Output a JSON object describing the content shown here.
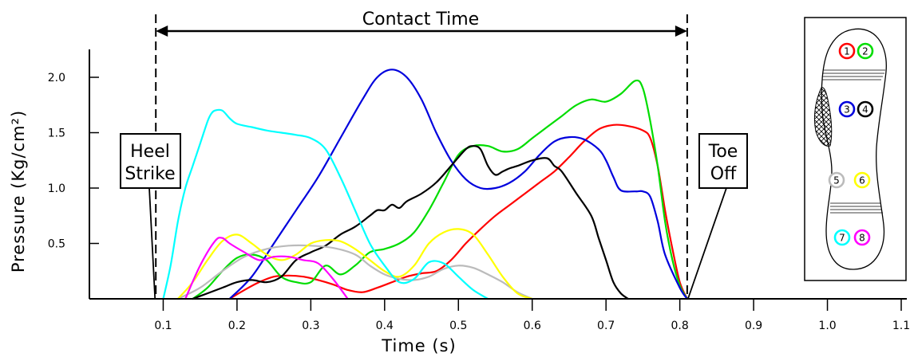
{
  "chart_data": {
    "type": "line",
    "xlabel": "Time  (s)",
    "ylabel": "Pressure  (Kg/cm²)",
    "xlim": [
      0,
      1.1
    ],
    "ylim": [
      0,
      2.2
    ],
    "x_ticks": [
      0.1,
      0.2,
      0.3,
      0.4,
      0.5,
      0.6,
      0.7,
      0.8,
      0.9,
      1.0,
      1.1
    ],
    "x_tick_labels": [
      "0.1",
      "0.2",
      "0.3",
      "0.4",
      "0.5",
      "0.6",
      "0.7",
      "0.8",
      "0.9",
      "1.0",
      "1.1"
    ],
    "y_ticks": [
      0.5,
      1.0,
      1.5,
      2.0
    ],
    "y_tick_labels": [
      "0.5",
      "1.0",
      "1.5",
      "2.0"
    ],
    "grid": false,
    "legend": "none",
    "annotations": {
      "contact_time": {
        "label": "Contact Time",
        "start": 0.09,
        "end": 0.81
      },
      "heel_strike": {
        "label_line1": "Heel",
        "label_line2": "Strike",
        "x": 0.09
      },
      "toe_off": {
        "label_line1": "Toe",
        "label_line2": "Off",
        "x": 0.81
      }
    },
    "series": [
      {
        "sensor": "1",
        "color": "#ff0000",
        "x": [
          0.19,
          0.21,
          0.23,
          0.25,
          0.27,
          0.29,
          0.31,
          0.33,
          0.35,
          0.37,
          0.39,
          0.41,
          0.43,
          0.45,
          0.47,
          0.49,
          0.51,
          0.53,
          0.55,
          0.57,
          0.59,
          0.61,
          0.63,
          0.65,
          0.67,
          0.69,
          0.71,
          0.73,
          0.75,
          0.76,
          0.77,
          0.78,
          0.79,
          0.8,
          0.81
        ],
        "y": [
          0.0,
          0.08,
          0.15,
          0.2,
          0.21,
          0.2,
          0.17,
          0.13,
          0.08,
          0.06,
          0.1,
          0.15,
          0.2,
          0.23,
          0.25,
          0.35,
          0.5,
          0.63,
          0.75,
          0.85,
          0.95,
          1.05,
          1.15,
          1.28,
          1.42,
          1.53,
          1.57,
          1.56,
          1.52,
          1.45,
          1.2,
          0.8,
          0.45,
          0.15,
          0.0
        ]
      },
      {
        "sensor": "2",
        "color": "#00dd00",
        "x": [
          0.14,
          0.16,
          0.18,
          0.2,
          0.22,
          0.24,
          0.26,
          0.28,
          0.3,
          0.32,
          0.34,
          0.36,
          0.38,
          0.4,
          0.42,
          0.44,
          0.46,
          0.48,
          0.5,
          0.52,
          0.54,
          0.56,
          0.58,
          0.6,
          0.62,
          0.64,
          0.66,
          0.68,
          0.7,
          0.72,
          0.74,
          0.75,
          0.76,
          0.77,
          0.78,
          0.79,
          0.8,
          0.81
        ],
        "y": [
          0.0,
          0.1,
          0.25,
          0.37,
          0.4,
          0.35,
          0.2,
          0.15,
          0.15,
          0.3,
          0.22,
          0.3,
          0.42,
          0.45,
          0.5,
          0.6,
          0.8,
          1.05,
          1.3,
          1.38,
          1.38,
          1.33,
          1.35,
          1.45,
          1.55,
          1.65,
          1.75,
          1.8,
          1.78,
          1.85,
          1.97,
          1.9,
          1.6,
          1.2,
          0.7,
          0.35,
          0.12,
          0.0
        ]
      },
      {
        "sensor": "3",
        "color": "#0000dd",
        "x": [
          0.19,
          0.22,
          0.25,
          0.28,
          0.31,
          0.34,
          0.37,
          0.39,
          0.41,
          0.43,
          0.45,
          0.47,
          0.49,
          0.51,
          0.53,
          0.55,
          0.57,
          0.59,
          0.61,
          0.63,
          0.65,
          0.67,
          0.69,
          0.7,
          0.71,
          0.72,
          0.74,
          0.75,
          0.76,
          0.77,
          0.78,
          0.8,
          0.81
        ],
        "y": [
          0.0,
          0.2,
          0.5,
          0.8,
          1.1,
          1.45,
          1.8,
          2.0,
          2.07,
          2.0,
          1.8,
          1.5,
          1.25,
          1.08,
          1.0,
          1.0,
          1.05,
          1.15,
          1.3,
          1.42,
          1.46,
          1.44,
          1.35,
          1.25,
          1.1,
          0.98,
          0.97,
          0.97,
          0.92,
          0.7,
          0.4,
          0.1,
          0.0
        ]
      },
      {
        "sensor": "4",
        "color": "#000000",
        "x": [
          0.14,
          0.16,
          0.18,
          0.2,
          0.22,
          0.24,
          0.26,
          0.28,
          0.3,
          0.32,
          0.34,
          0.36,
          0.38,
          0.39,
          0.4,
          0.41,
          0.42,
          0.43,
          0.45,
          0.47,
          0.49,
          0.51,
          0.52,
          0.53,
          0.54,
          0.55,
          0.56,
          0.57,
          0.58,
          0.6,
          0.62,
          0.63,
          0.64,
          0.66,
          0.68,
          0.69,
          0.7,
          0.71,
          0.72,
          0.73
        ],
        "y": [
          0.0,
          0.05,
          0.1,
          0.15,
          0.17,
          0.15,
          0.2,
          0.35,
          0.42,
          0.48,
          0.58,
          0.65,
          0.75,
          0.8,
          0.8,
          0.85,
          0.82,
          0.88,
          0.95,
          1.05,
          1.2,
          1.35,
          1.38,
          1.35,
          1.2,
          1.12,
          1.15,
          1.18,
          1.2,
          1.25,
          1.27,
          1.2,
          1.15,
          0.95,
          0.75,
          0.55,
          0.35,
          0.15,
          0.05,
          0.0
        ]
      },
      {
        "sensor": "5",
        "color": "#bbbbbb",
        "x": [
          0.12,
          0.15,
          0.18,
          0.21,
          0.24,
          0.27,
          0.3,
          0.33,
          0.36,
          0.38,
          0.4,
          0.42,
          0.44,
          0.46,
          0.48,
          0.5,
          0.52,
          0.54,
          0.56,
          0.58,
          0.6
        ],
        "y": [
          0.0,
          0.1,
          0.25,
          0.38,
          0.45,
          0.48,
          0.48,
          0.46,
          0.4,
          0.3,
          0.22,
          0.18,
          0.17,
          0.2,
          0.27,
          0.3,
          0.28,
          0.22,
          0.15,
          0.06,
          0.0
        ]
      },
      {
        "sensor": "6",
        "color": "#ffff00",
        "x": [
          0.12,
          0.14,
          0.16,
          0.18,
          0.2,
          0.22,
          0.24,
          0.26,
          0.28,
          0.3,
          0.32,
          0.34,
          0.36,
          0.38,
          0.4,
          0.42,
          0.44,
          0.46,
          0.48,
          0.5,
          0.52,
          0.54,
          0.56,
          0.58,
          0.6
        ],
        "y": [
          0.0,
          0.15,
          0.35,
          0.52,
          0.58,
          0.5,
          0.4,
          0.35,
          0.4,
          0.5,
          0.53,
          0.52,
          0.45,
          0.35,
          0.25,
          0.2,
          0.3,
          0.5,
          0.6,
          0.63,
          0.58,
          0.4,
          0.2,
          0.05,
          0.0
        ]
      },
      {
        "sensor": "7",
        "color": "#00ffff",
        "x": [
          0.1,
          0.11,
          0.12,
          0.13,
          0.14,
          0.15,
          0.16,
          0.165,
          0.17,
          0.18,
          0.19,
          0.2,
          0.22,
          0.24,
          0.26,
          0.28,
          0.3,
          0.32,
          0.34,
          0.36,
          0.38,
          0.4,
          0.42,
          0.44,
          0.46,
          0.48,
          0.5,
          0.52,
          0.54
        ],
        "y": [
          0.0,
          0.3,
          0.7,
          1.0,
          1.2,
          1.4,
          1.6,
          1.67,
          1.7,
          1.7,
          1.63,
          1.58,
          1.55,
          1.52,
          1.5,
          1.48,
          1.45,
          1.35,
          1.1,
          0.8,
          0.5,
          0.3,
          0.15,
          0.18,
          0.33,
          0.32,
          0.2,
          0.08,
          0.0
        ]
      },
      {
        "sensor": "8",
        "color": "#ff00ff",
        "x": [
          0.13,
          0.15,
          0.17,
          0.18,
          0.19,
          0.21,
          0.23,
          0.25,
          0.27,
          0.29,
          0.31,
          0.33,
          0.35
        ],
        "y": [
          0.0,
          0.3,
          0.52,
          0.55,
          0.5,
          0.42,
          0.35,
          0.38,
          0.38,
          0.35,
          0.32,
          0.18,
          0.0
        ]
      }
    ]
  }
}
